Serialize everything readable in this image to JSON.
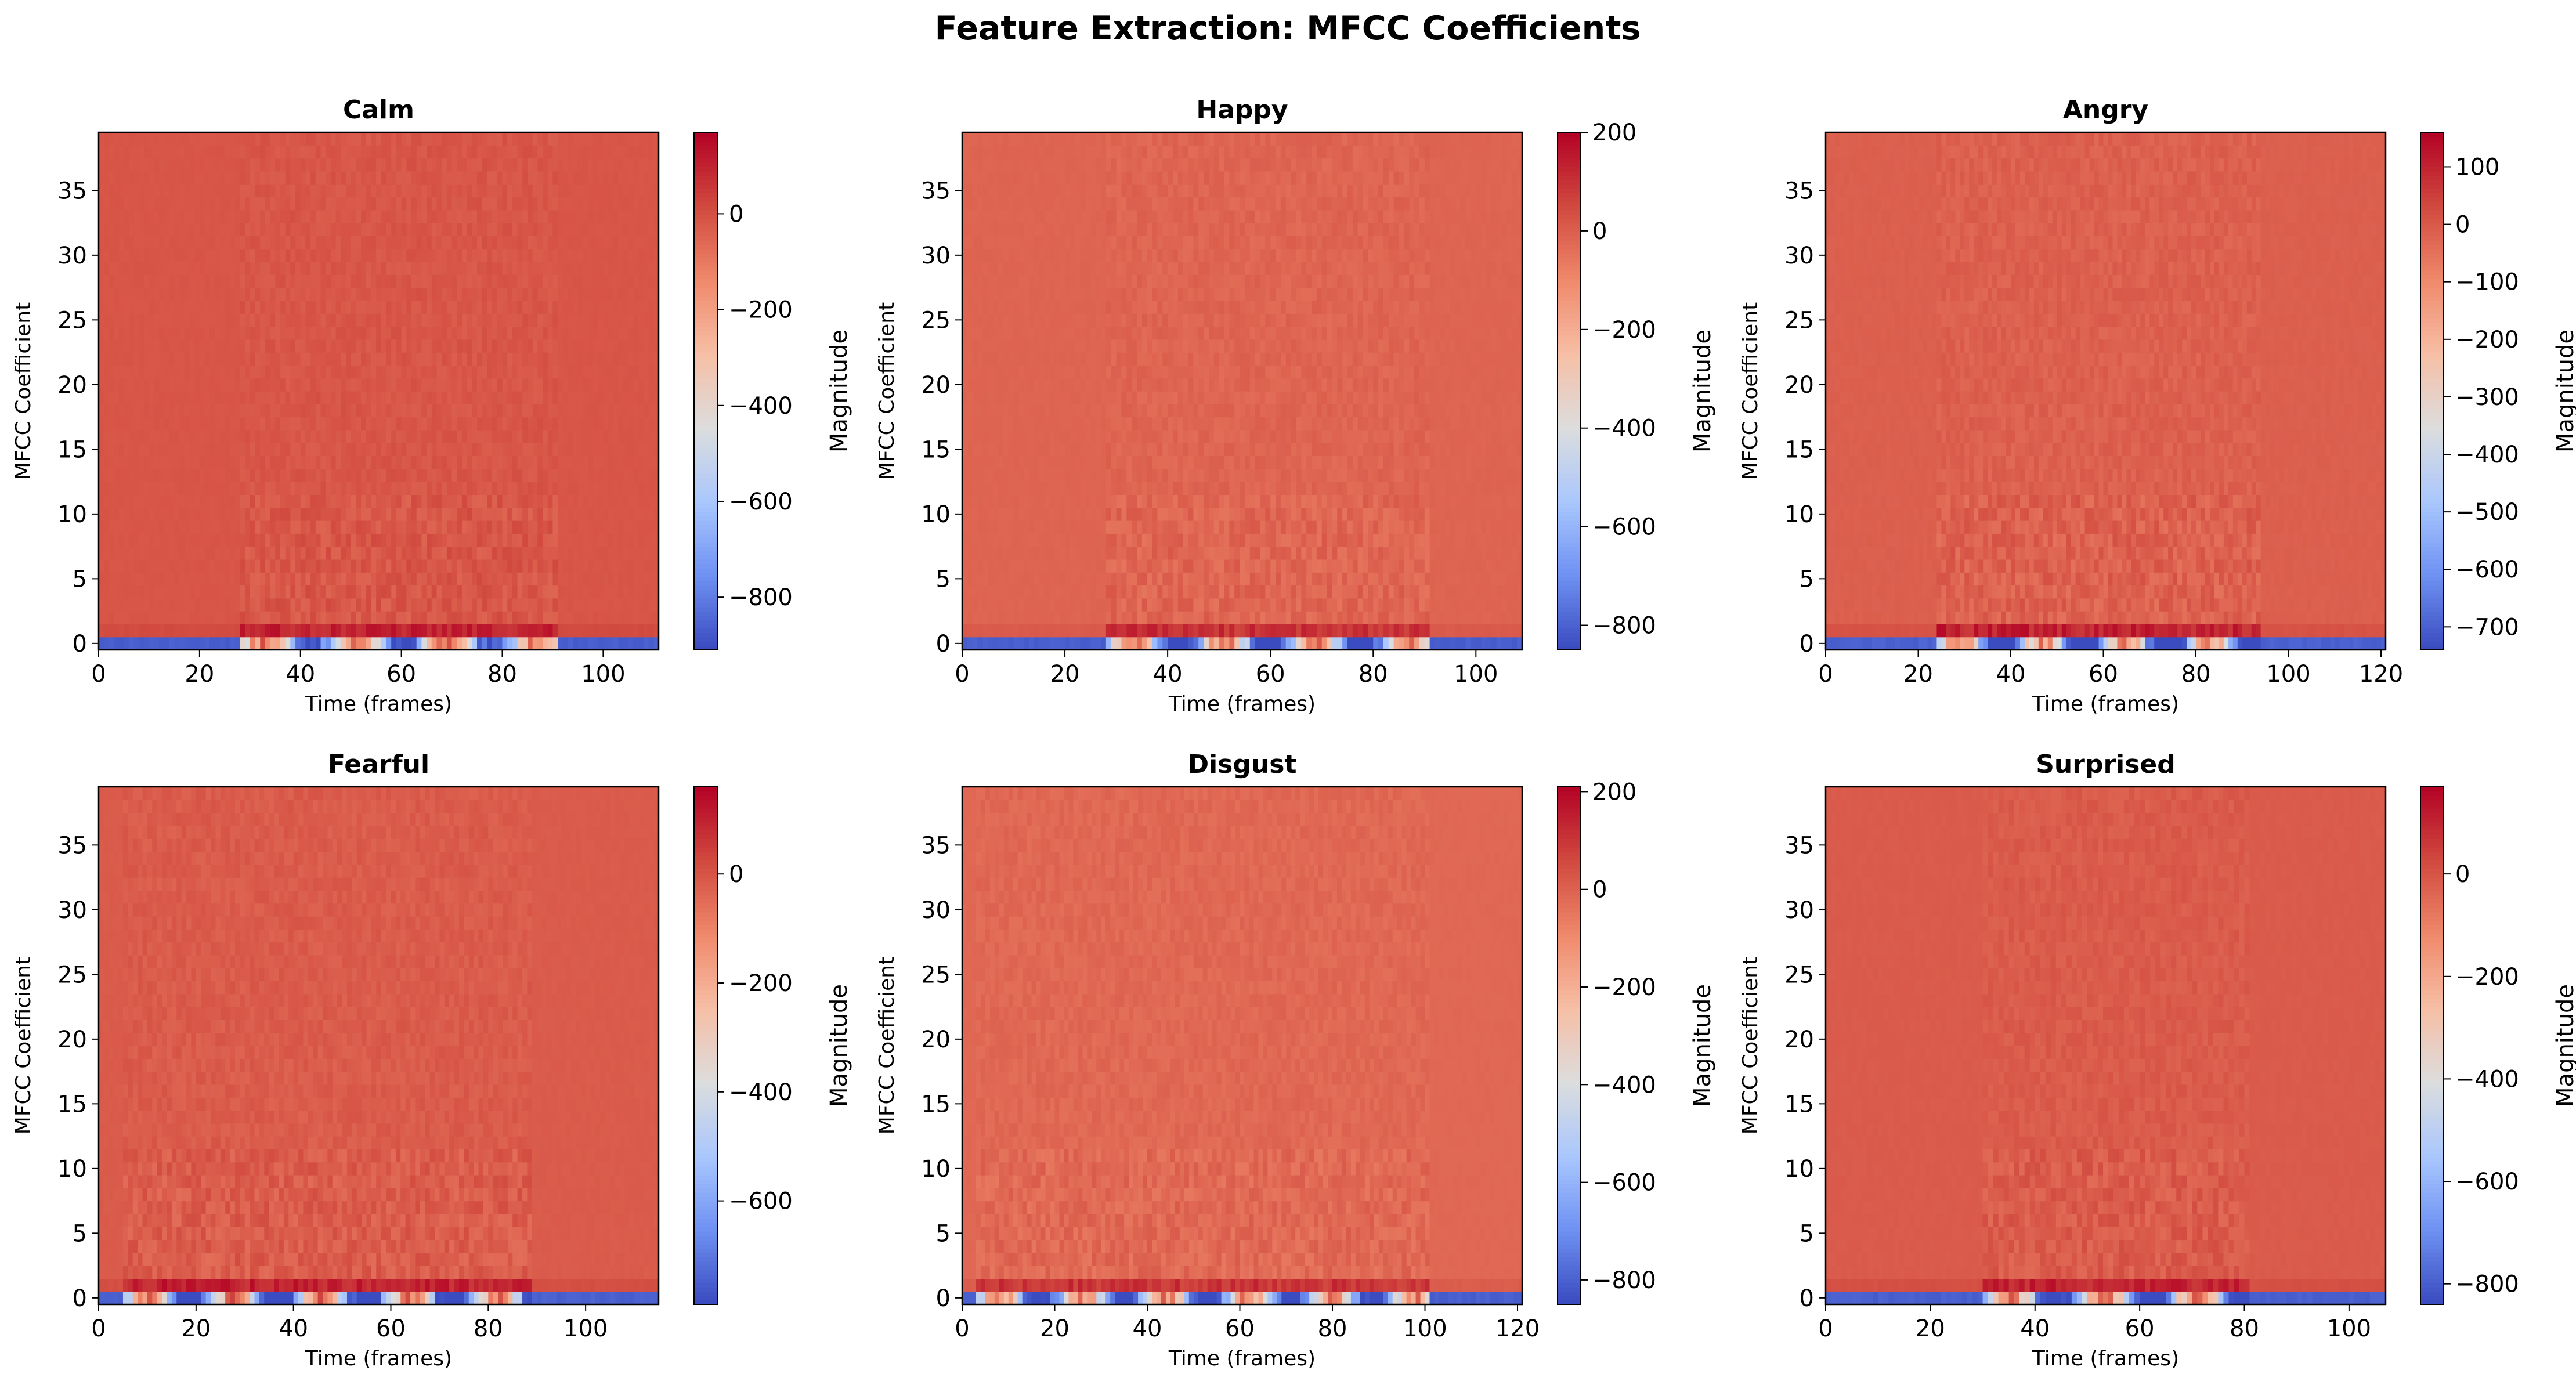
{
  "figure": {
    "title": "Feature Extraction: MFCC Coefficients"
  },
  "colormap": {
    "name": "coolwarm",
    "stops": [
      "#3b4cc0",
      "#6f92f3",
      "#aac7fd",
      "#dcdddd",
      "#f6bfa6",
      "#f08a6c",
      "#d24b40",
      "#b40426"
    ],
    "background_cell": "#e57058"
  },
  "chart_data": [
    {
      "type": "heatmap",
      "title": "Calm",
      "xlabel": "Time (frames)",
      "ylabel": "MFCC Coefficient",
      "colorbar_label": "Magnitude",
      "frames": 111,
      "coefficients": 40,
      "xlim": [
        0,
        111
      ],
      "ylim": [
        -0.5,
        39.5
      ],
      "xticks": [
        0,
        20,
        40,
        60,
        80,
        100
      ],
      "yticks": [
        0,
        5,
        10,
        15,
        20,
        25,
        30,
        35
      ],
      "clim": [
        -910,
        170
      ],
      "cticks": [
        -800,
        -600,
        -400,
        -200,
        0
      ],
      "speech_frames": [
        28,
        90
      ]
    },
    {
      "type": "heatmap",
      "title": "Happy",
      "xlabel": "Time (frames)",
      "ylabel": "MFCC Coefficient",
      "colorbar_label": "Magnitude",
      "frames": 109,
      "coefficients": 40,
      "xlim": [
        0,
        109
      ],
      "ylim": [
        -0.5,
        39.5
      ],
      "xticks": [
        0,
        20,
        40,
        60,
        80,
        100
      ],
      "yticks": [
        0,
        5,
        10,
        15,
        20,
        25,
        30,
        35
      ],
      "clim": [
        -850,
        200
      ],
      "cticks": [
        -800,
        -600,
        -400,
        -200,
        0,
        200
      ],
      "speech_frames": [
        28,
        90
      ]
    },
    {
      "type": "heatmap",
      "title": "Angry",
      "xlabel": "Time (frames)",
      "ylabel": "MFCC Coefficient",
      "colorbar_label": "Magnitude",
      "frames": 121,
      "coefficients": 40,
      "xlim": [
        0,
        121
      ],
      "ylim": [
        -0.5,
        39.5
      ],
      "xticks": [
        0,
        20,
        40,
        60,
        80,
        100,
        120
      ],
      "yticks": [
        0,
        5,
        10,
        15,
        20,
        25,
        30,
        35
      ],
      "clim": [
        -740,
        160
      ],
      "cticks": [
        -700,
        -600,
        -500,
        -400,
        -300,
        -200,
        -100,
        0,
        100
      ],
      "speech_frames": [
        24,
        93
      ]
    },
    {
      "type": "heatmap",
      "title": "Fearful",
      "xlabel": "Time (frames)",
      "ylabel": "MFCC Coefficient",
      "colorbar_label": "Magnitude",
      "frames": 115,
      "coefficients": 40,
      "xlim": [
        0,
        115
      ],
      "ylim": [
        -0.5,
        39.5
      ],
      "xticks": [
        0,
        20,
        40,
        60,
        80,
        100
      ],
      "yticks": [
        0,
        5,
        10,
        15,
        20,
        25,
        30,
        35
      ],
      "clim": [
        -790,
        160
      ],
      "cticks": [
        -600,
        -400,
        -200,
        0
      ],
      "speech_frames": [
        5,
        88
      ]
    },
    {
      "type": "heatmap",
      "title": "Disgust",
      "xlabel": "Time (frames)",
      "ylabel": "MFCC Coefficient",
      "colorbar_label": "Magnitude",
      "frames": 121,
      "coefficients": 40,
      "xlim": [
        0,
        121
      ],
      "ylim": [
        -0.5,
        39.5
      ],
      "xticks": [
        0,
        20,
        40,
        60,
        80,
        100,
        120
      ],
      "yticks": [
        0,
        5,
        10,
        15,
        20,
        25,
        30,
        35
      ],
      "clim": [
        -850,
        210
      ],
      "cticks": [
        -800,
        -600,
        -400,
        -200,
        0,
        200
      ],
      "speech_frames": [
        3,
        100
      ]
    },
    {
      "type": "heatmap",
      "title": "Surprised",
      "xlabel": "Time (frames)",
      "ylabel": "MFCC Coefficient",
      "colorbar_label": "Magnitude",
      "frames": 107,
      "coefficients": 40,
      "xlim": [
        0,
        107
      ],
      "ylim": [
        -0.5,
        39.5
      ],
      "xticks": [
        0,
        20,
        40,
        60,
        80,
        100
      ],
      "yticks": [
        0,
        5,
        10,
        15,
        20,
        25,
        30,
        35
      ],
      "clim": [
        -840,
        170
      ],
      "cticks": [
        -800,
        -600,
        -400,
        -200,
        0
      ],
      "speech_frames": [
        30,
        80
      ]
    }
  ]
}
